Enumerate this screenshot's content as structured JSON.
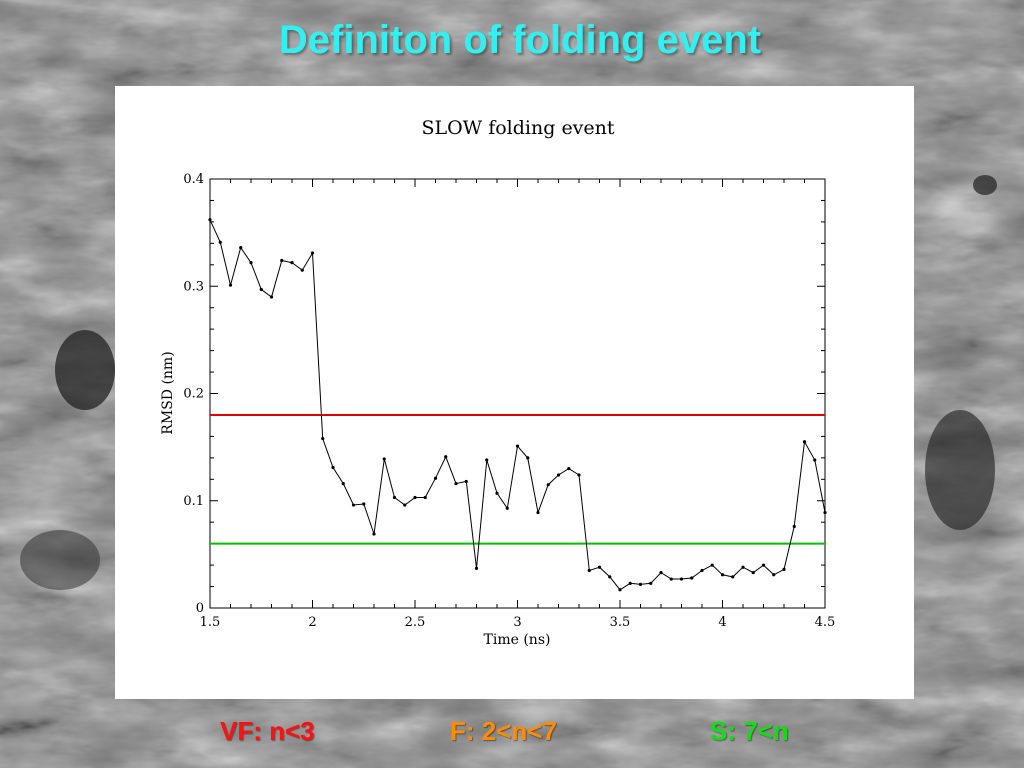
{
  "slide": {
    "title": "Definiton of folding event",
    "title_color": "#33f0f0"
  },
  "legend": [
    {
      "text": "VF: n<3",
      "color": "#ff1010"
    },
    {
      "text": "F: 2<n<7",
      "color": "#ff8c00"
    },
    {
      "text": "S: 7<n",
      "color": "#10e010"
    }
  ],
  "chart_data": {
    "type": "line",
    "title": "SLOW folding event",
    "xlabel": "Time (ns)",
    "ylabel": "RMSD (nm)",
    "xlim": [
      1.5,
      4.5
    ],
    "ylim": [
      0,
      0.4
    ],
    "x_ticks": [
      "1.5",
      "2",
      "2.5",
      "3",
      "3.5",
      "4",
      "4.5"
    ],
    "y_ticks": [
      "0",
      "0.1",
      "0.2",
      "0.3",
      "0.4"
    ],
    "grid": false,
    "series": [
      {
        "color": "#000000",
        "x": [
          1.5,
          1.55,
          1.6,
          1.65,
          1.7,
          1.75,
          1.8,
          1.85,
          1.9,
          1.95,
          2.0,
          2.05,
          2.1,
          2.15,
          2.2,
          2.25,
          2.3,
          2.35,
          2.4,
          2.45,
          2.5,
          2.55,
          2.6,
          2.65,
          2.7,
          2.75,
          2.8,
          2.85,
          2.9,
          2.95,
          3.0,
          3.05,
          3.1,
          3.15,
          3.2,
          3.25,
          3.3,
          3.35,
          3.4,
          3.45,
          3.5,
          3.55,
          3.6,
          3.65,
          3.7,
          3.75,
          3.8,
          3.85,
          3.9,
          3.95,
          4.0,
          4.05,
          4.1,
          4.15,
          4.2,
          4.25,
          4.3,
          4.35,
          4.4,
          4.45,
          4.5
        ],
        "y": [
          0.362,
          0.341,
          0.301,
          0.336,
          0.322,
          0.297,
          0.29,
          0.324,
          0.322,
          0.315,
          0.331,
          0.158,
          0.131,
          0.116,
          0.096,
          0.097,
          0.069,
          0.139,
          0.103,
          0.096,
          0.103,
          0.103,
          0.121,
          0.141,
          0.116,
          0.118,
          0.037,
          0.138,
          0.107,
          0.093,
          0.151,
          0.14,
          0.089,
          0.115,
          0.124,
          0.13,
          0.124,
          0.035,
          0.038,
          0.029,
          0.017,
          0.023,
          0.022,
          0.023,
          0.033,
          0.027,
          0.027,
          0.028,
          0.035,
          0.04,
          0.031,
          0.029,
          0.038,
          0.033,
          0.04,
          0.031,
          0.036,
          0.076,
          0.155,
          0.138,
          0.089
        ]
      }
    ],
    "thresholds": [
      {
        "y": 0.18,
        "color": "#e00000"
      },
      {
        "y": 0.06,
        "color": "#00c000"
      }
    ]
  }
}
